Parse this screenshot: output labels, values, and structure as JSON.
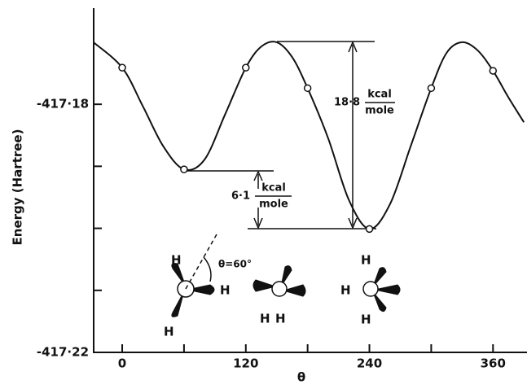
{
  "chart_data": {
    "type": "line",
    "xlabel": "θ",
    "ylabel": "Energy (Hartree)",
    "xlim": [
      -27.7,
      393
    ],
    "ylim": [
      -417.22,
      -417.1645
    ],
    "xticks": [
      0,
      120,
      240,
      360
    ],
    "xminor_ticks": [
      60,
      180,
      300
    ],
    "yticks": [
      {
        "value": -417.18,
        "label": "-417·18"
      },
      {
        "value": -417.22,
        "label": "-417·22"
      }
    ],
    "yminor_ticks": [
      -417.19,
      -417.2,
      -417.21
    ],
    "color": "#111111",
    "curve": {
      "x": [
        -28,
        0,
        20,
        40,
        60,
        80,
        100,
        120,
        135,
        150,
        165,
        180,
        200,
        220,
        240,
        260,
        280,
        300,
        315,
        330,
        345,
        360,
        375,
        390
      ],
      "values": [
        -417.17,
        -417.1741,
        -417.1803,
        -417.1868,
        -417.1905,
        -417.1889,
        -417.1816,
        -417.1741,
        -417.1707,
        -417.17,
        -417.1724,
        -417.1774,
        -417.1855,
        -417.1954,
        -417.2001,
        -417.1961,
        -417.1868,
        -417.1774,
        -417.1717,
        -417.17,
        -417.1713,
        -417.1746,
        -417.1789,
        -417.1829
      ]
    },
    "points": {
      "x": [
        0,
        60,
        120,
        180,
        240,
        300,
        360
      ],
      "values": [
        -417.1741,
        -417.1905,
        -417.1741,
        -417.1774,
        -417.2001,
        -417.1774,
        -417.1746
      ]
    },
    "annotations": {
      "high": {
        "value": "18·8",
        "num": "kcal",
        "den": "mole"
      },
      "low": {
        "value": "6·1",
        "num": "kcal",
        "den": "mole"
      },
      "angle": "θ=60°",
      "atoms": [
        "H",
        "H",
        "H",
        "H",
        "H",
        "H",
        "H",
        "H"
      ]
    }
  }
}
